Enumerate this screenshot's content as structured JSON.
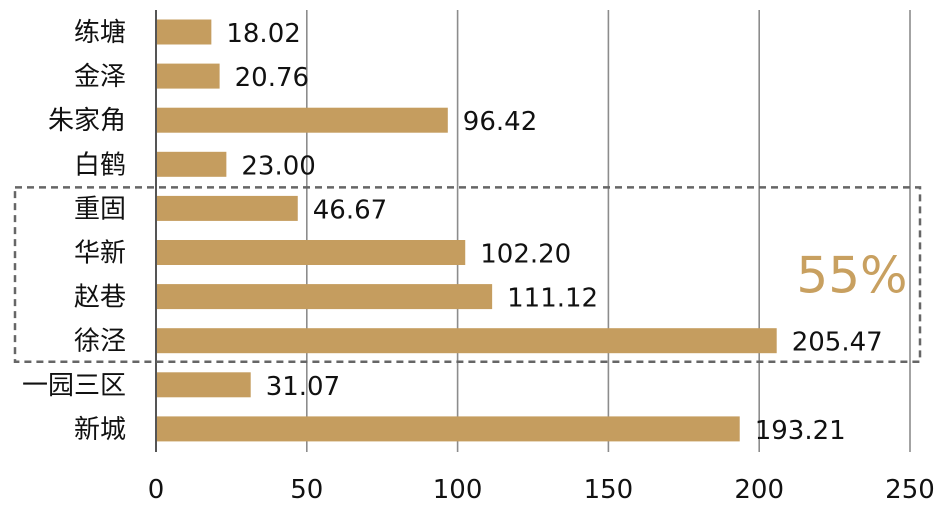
{
  "chart_data": {
    "type": "bar",
    "orientation": "horizontal",
    "categories": [
      "练塘",
      "金泽",
      "朱家角",
      "白鹤",
      "重固",
      "华新",
      "赵巷",
      "徐泾",
      "一园三区",
      "新城"
    ],
    "values": [
      18.02,
      20.76,
      96.42,
      23.0,
      46.67,
      102.2,
      111.12,
      205.47,
      31.07,
      193.21
    ],
    "value_labels": [
      "18.02",
      "20.76",
      "96.42",
      "23.00",
      "46.67",
      "102.20",
      "111.12",
      "205.47",
      "31.07",
      "193.21"
    ],
    "xlim": [
      0,
      250
    ],
    "xticks": [
      "0",
      "50",
      "100",
      "150",
      "200",
      "250"
    ],
    "grid": "vertical",
    "highlight": {
      "categories": [
        "重固",
        "华新",
        "赵巷",
        "徐泾"
      ],
      "label": "55%",
      "color": "#c8a060"
    },
    "bar_color": "#c59d5f"
  }
}
